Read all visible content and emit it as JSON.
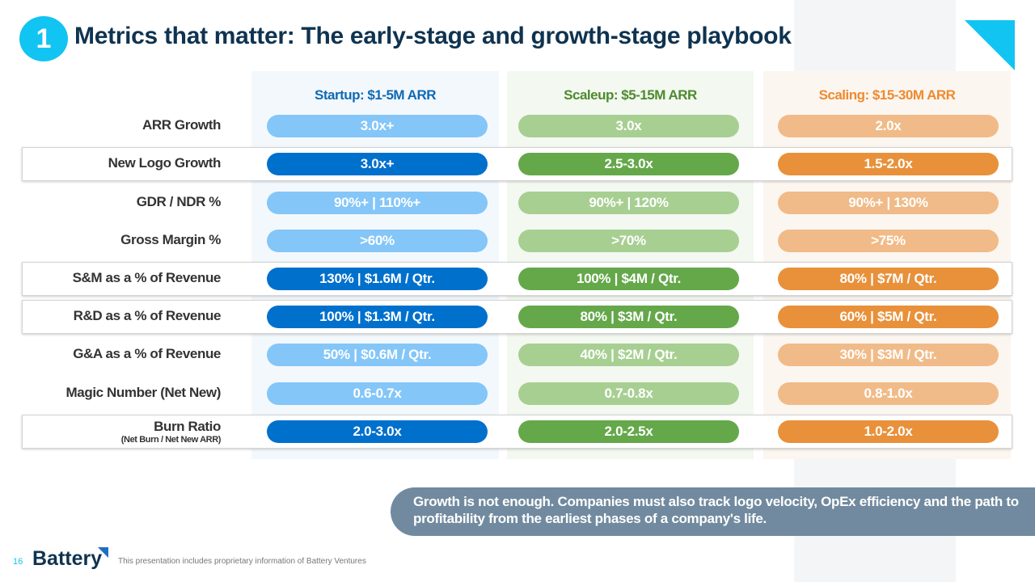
{
  "header": {
    "badge": "1",
    "title": "Metrics that matter: The early-stage and growth-stage playbook"
  },
  "colors": {
    "startup_dark": "#0070cd",
    "startup_light": "#84c6f8",
    "scaleup_dark": "#64a84a",
    "scaleup_light": "#a7cf92",
    "scaling_dark": "#e8913a",
    "scaling_light": "#f0bb88"
  },
  "columns": [
    {
      "title": "Startup: $1-5M ARR",
      "values": [
        "3.0x+",
        "3.0x+",
        "90%+ | 110%+",
        ">60%",
        "130% | $1.6M / Qtr.",
        "100% | $1.3M / Qtr.",
        "50% | $0.6M / Qtr.",
        "0.6-0.7x",
        "2.0-3.0x"
      ]
    },
    {
      "title": "Scaleup: $5-15M ARR",
      "values": [
        "3.0x",
        "2.5-3.0x",
        "90%+ | 120%",
        ">70%",
        "100% | $4M / Qtr.",
        "80% | $3M / Qtr.",
        "40% | $2M / Qtr.",
        "0.7-0.8x",
        "2.0-2.5x"
      ]
    },
    {
      "title": "Scaling: $15-30M ARR",
      "values": [
        "2.0x",
        "1.5-2.0x",
        "90%+ | 130%",
        ">75%",
        "80% | $7M / Qtr.",
        "60% | $5M / Qtr.",
        "30% | $3M / Qtr.",
        "0.8-1.0x",
        "1.0-2.0x"
      ]
    }
  ],
  "rows": [
    {
      "label": "ARR Growth",
      "highlight": false
    },
    {
      "label": "New Logo Growth",
      "highlight": true
    },
    {
      "label": "GDR / NDR %",
      "highlight": false
    },
    {
      "label": "Gross Margin %",
      "highlight": false
    },
    {
      "label": "S&M as a % of Revenue",
      "highlight": true
    },
    {
      "label": "R&D as a % of Revenue",
      "highlight": true
    },
    {
      "label": "G&A as a % of Revenue",
      "highlight": false
    },
    {
      "label": "Magic Number (Net New)",
      "highlight": false
    },
    {
      "label": "Burn Ratio",
      "sublabel": "(Net Burn / Net New ARR)",
      "highlight": true
    }
  ],
  "callout": "Growth is not enough. Companies must also track logo velocity, OpEx efficiency and the path to profitability from the earliest phases of a company's life.",
  "footer": {
    "page": "16",
    "logo": "Battery",
    "disclaimer": "This presentation includes proprietary information of Battery Ventures"
  }
}
